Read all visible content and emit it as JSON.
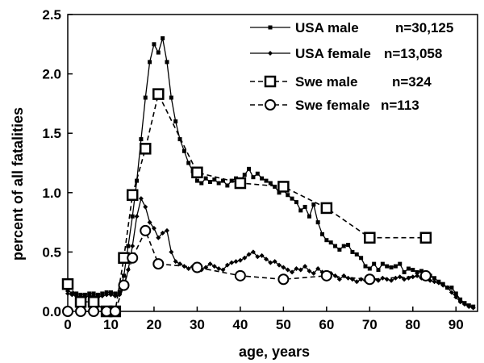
{
  "chart_data": {
    "type": "line",
    "xlabel": "age, years",
    "ylabel": "percent of all fatalities",
    "xlim": [
      0,
      95
    ],
    "ylim": [
      0,
      2.5
    ],
    "xticks": [
      0,
      10,
      20,
      30,
      40,
      50,
      60,
      70,
      80,
      90
    ],
    "yticks": [
      0.0,
      0.5,
      1.0,
      1.5,
      2.0,
      2.5
    ],
    "xtick_labels": [
      "0",
      "10",
      "20",
      "30",
      "40",
      "50",
      "60",
      "70",
      "80",
      "90"
    ],
    "ytick_labels": [
      "0.0",
      "0.5",
      "1.0",
      "1.5",
      "2.0",
      "2.5"
    ],
    "grid": false,
    "legend_position": "top-right",
    "colors": {
      "series": "#000000",
      "background": "#ffffff"
    },
    "series": [
      {
        "name": "USA male",
        "n_label": "n=30,125",
        "marker": "small-square",
        "line": "solid",
        "x": [
          0,
          1,
          2,
          3,
          4,
          5,
          6,
          7,
          8,
          9,
          10,
          11,
          12,
          13,
          14,
          15,
          16,
          17,
          18,
          19,
          20,
          21,
          22,
          23,
          24,
          25,
          26,
          27,
          28,
          29,
          30,
          31,
          32,
          33,
          34,
          35,
          36,
          37,
          38,
          39,
          40,
          41,
          42,
          43,
          44,
          45,
          46,
          47,
          48,
          49,
          50,
          51,
          52,
          53,
          54,
          55,
          56,
          57,
          58,
          59,
          60,
          61,
          62,
          63,
          64,
          65,
          66,
          67,
          68,
          69,
          70,
          71,
          72,
          73,
          74,
          75,
          76,
          77,
          78,
          79,
          80,
          81,
          82,
          83,
          84,
          85,
          86,
          87,
          88,
          89,
          90,
          91,
          92,
          93,
          94
        ],
        "y": [
          0.18,
          0.15,
          0.15,
          0.14,
          0.14,
          0.15,
          0.15,
          0.14,
          0.15,
          0.16,
          0.16,
          0.15,
          0.16,
          0.3,
          0.55,
          0.8,
          1.1,
          1.45,
          1.8,
          2.1,
          2.25,
          2.18,
          2.3,
          2.1,
          1.8,
          1.6,
          1.45,
          1.35,
          1.25,
          1.18,
          1.1,
          1.08,
          1.12,
          1.09,
          1.11,
          1.08,
          1.1,
          1.06,
          1.1,
          1.12,
          1.1,
          1.15,
          1.2,
          1.13,
          1.16,
          1.12,
          1.1,
          1.08,
          1.05,
          1.0,
          1.02,
          0.98,
          0.95,
          0.92,
          0.85,
          0.88,
          0.8,
          0.9,
          0.75,
          0.65,
          0.6,
          0.58,
          0.55,
          0.52,
          0.55,
          0.56,
          0.5,
          0.48,
          0.45,
          0.38,
          0.36,
          0.4,
          0.35,
          0.4,
          0.38,
          0.37,
          0.38,
          0.4,
          0.33,
          0.36,
          0.35,
          0.33,
          0.34,
          0.32,
          0.3,
          0.28,
          0.25,
          0.23,
          0.2,
          0.2,
          0.15,
          0.1,
          0.07,
          0.05,
          0.04
        ]
      },
      {
        "name": "USA female",
        "n_label": "n=13,058",
        "marker": "small-diamond",
        "line": "solid",
        "x": [
          0,
          1,
          2,
          3,
          4,
          5,
          6,
          7,
          8,
          9,
          10,
          11,
          12,
          13,
          14,
          15,
          16,
          17,
          18,
          19,
          20,
          21,
          22,
          23,
          24,
          25,
          26,
          27,
          28,
          29,
          30,
          31,
          32,
          33,
          34,
          35,
          36,
          37,
          38,
          39,
          40,
          41,
          42,
          43,
          44,
          45,
          46,
          47,
          48,
          49,
          50,
          51,
          52,
          53,
          54,
          55,
          56,
          57,
          58,
          59,
          60,
          61,
          62,
          63,
          64,
          65,
          66,
          67,
          68,
          69,
          70,
          71,
          72,
          73,
          74,
          75,
          76,
          77,
          78,
          79,
          80,
          81,
          82,
          83,
          84,
          85,
          86,
          87,
          88,
          89,
          90,
          91,
          92,
          93,
          94
        ],
        "y": [
          0.15,
          0.14,
          0.13,
          0.12,
          0.12,
          0.13,
          0.13,
          0.12,
          0.13,
          0.14,
          0.14,
          0.13,
          0.14,
          0.2,
          0.35,
          0.55,
          0.8,
          0.95,
          0.88,
          0.75,
          0.7,
          0.62,
          0.66,
          0.68,
          0.5,
          0.42,
          0.4,
          0.38,
          0.36,
          0.38,
          0.35,
          0.35,
          0.37,
          0.4,
          0.38,
          0.36,
          0.35,
          0.39,
          0.41,
          0.42,
          0.43,
          0.45,
          0.48,
          0.5,
          0.46,
          0.47,
          0.44,
          0.41,
          0.42,
          0.39,
          0.37,
          0.35,
          0.33,
          0.36,
          0.35,
          0.38,
          0.34,
          0.32,
          0.36,
          0.33,
          0.3,
          0.32,
          0.3,
          0.27,
          0.3,
          0.28,
          0.27,
          0.25,
          0.27,
          0.26,
          0.28,
          0.27,
          0.26,
          0.28,
          0.27,
          0.26,
          0.28,
          0.29,
          0.27,
          0.28,
          0.29,
          0.3,
          0.28,
          0.3,
          0.26,
          0.25,
          0.24,
          0.22,
          0.2,
          0.16,
          0.12,
          0.08,
          0.06,
          0.04,
          0.03
        ]
      },
      {
        "name": "Swe male",
        "n_label": "n=324",
        "marker": "open-square",
        "line": "dashed",
        "x": [
          0,
          3,
          6,
          9,
          11,
          13,
          15,
          18,
          21,
          30,
          40,
          50,
          60,
          70,
          83
        ],
        "y": [
          0.23,
          0.08,
          0.08,
          0.0,
          0.0,
          0.45,
          0.98,
          1.37,
          1.83,
          1.17,
          1.08,
          1.05,
          0.87,
          0.62,
          0.62
        ]
      },
      {
        "name": "Swe female",
        "n_label": "n=113",
        "marker": "open-circle",
        "line": "dashed",
        "x": [
          0,
          3,
          6,
          9,
          11,
          13,
          15,
          18,
          21,
          30,
          40,
          50,
          60,
          70,
          83
        ],
        "y": [
          0.0,
          0.0,
          0.0,
          0.0,
          0.0,
          0.22,
          0.45,
          0.68,
          0.4,
          0.37,
          0.3,
          0.27,
          0.3,
          0.27,
          0.3
        ]
      }
    ]
  }
}
